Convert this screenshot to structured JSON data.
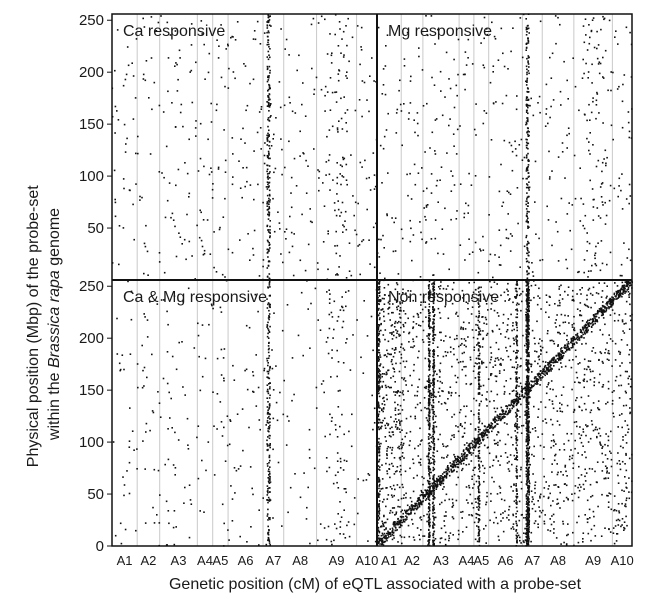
{
  "chart_data": {
    "type": "scatter",
    "title": "",
    "xlabel": "Genetic position (cM) of eQTL associated with a probe-set",
    "ylabel_lines": [
      [
        {
          "text": "Physical position (Mbp) of the probe-set",
          "italic": false
        }
      ],
      [
        {
          "text": "within the ",
          "italic": false
        },
        {
          "text": "Brassica rapa",
          "italic": true
        },
        {
          "text": " genome",
          "italic": false
        }
      ]
    ],
    "ylim": [
      0,
      256
    ],
    "yticks": [
      0,
      50,
      100,
      150,
      200,
      250
    ],
    "chromosomes": [
      "A1",
      "A2",
      "A3",
      "A4",
      "A5",
      "A6",
      "A7",
      "A8",
      "A9",
      "A10"
    ],
    "grid": "vertical lines at chromosome boundaries",
    "panels": [
      {
        "label": "Ca responsive",
        "position": "top-left",
        "density": "sparse"
      },
      {
        "label": "Mg responsive",
        "position": "top-right",
        "density": "sparse"
      },
      {
        "label": "Ca & Mg responsive",
        "position": "bottom-left",
        "density": "sparse"
      },
      {
        "label": "Non responsive",
        "position": "bottom-right",
        "density": "dense",
        "cis_diagonal": true
      }
    ]
  }
}
